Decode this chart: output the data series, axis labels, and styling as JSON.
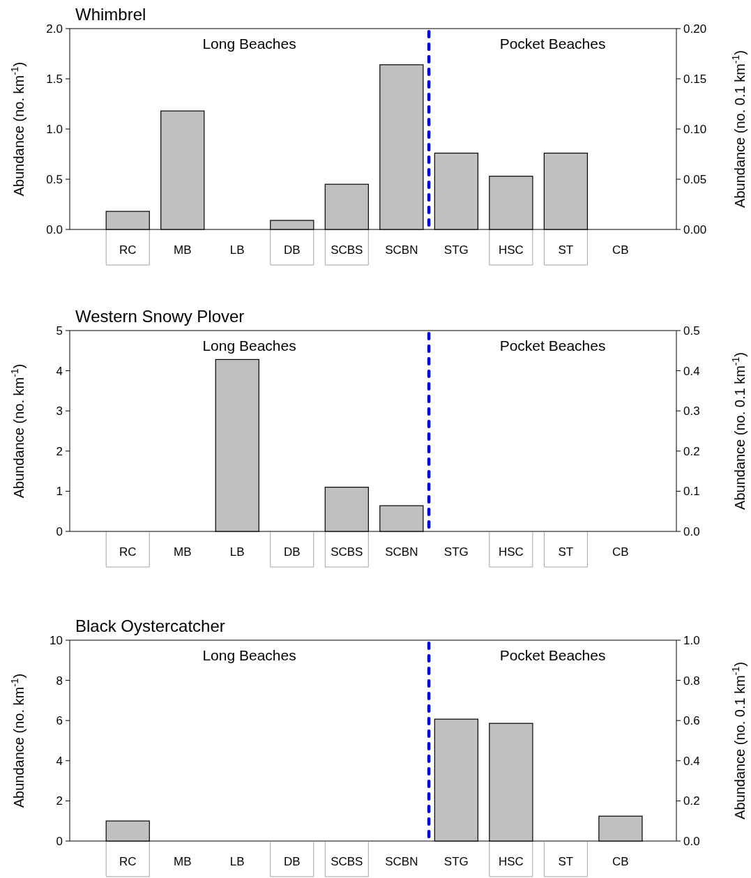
{
  "chart_data": [
    {
      "type": "bar",
      "title": "Whimbrel",
      "categories": [
        "RC",
        "MB",
        "LB",
        "DB",
        "SCBS",
        "SCBN",
        "STG",
        "HSC",
        "ST",
        "CB"
      ],
      "values": [
        0.18,
        1.18,
        0,
        0.09,
        0.45,
        1.64,
        0.76,
        0.53,
        0.76,
        0
      ],
      "color": "#c0c0c0",
      "ylim": [
        0,
        2
      ],
      "yticks": [
        {
          "value": 0,
          "label": "0.0"
        },
        0.5,
        {
          "value": 1,
          "label": "1.0"
        },
        1.5,
        {
          "value": 2,
          "label": "2.0"
        }
      ],
      "y2lim": [
        0,
        0.2
      ],
      "y2ticks": [
        {
          "value": 0,
          "label": "0.00"
        },
        0.05,
        {
          "value": 0.1,
          "label": "0.10"
        },
        0.15,
        {
          "value": 0.2,
          "label": "0.20"
        }
      ],
      "ylabel": "Abundance (no. km$^{-1}$)",
      "y2label": "Abundance (no. 0.1 km$^{-1}$)",
      "annotations": [
        "Long Beaches",
        "Pocket Beaches"
      ]
    },
    {
      "type": "bar",
      "title": "Western Snowy Plover",
      "categories": [
        "RC",
        "MB",
        "LB",
        "DB",
        "SCBS",
        "SCBN",
        "STG",
        "HSC",
        "ST",
        "CB"
      ],
      "values": [
        0,
        0,
        4.28,
        0,
        1.1,
        0.64,
        0,
        0,
        0,
        0
      ],
      "color": "#c0c0c0",
      "ylim": [
        0,
        5
      ],
      "yticks": [
        0,
        1,
        2,
        3,
        4,
        5
      ],
      "y2lim": [
        0,
        0.5
      ],
      "y2ticks": [
        {
          "value": 0,
          "label": "0.0"
        },
        0.1,
        0.2,
        0.3,
        0.4,
        0.5
      ],
      "ylabel": "Abundance (no. km$^{-1}$)",
      "y2label": "Abundance (no. 0.1 km$^{-1}$)",
      "annotations": [
        "Long Beaches",
        "Pocket Beaches"
      ]
    },
    {
      "type": "bar",
      "title": "Black Oystercatcher",
      "categories": [
        "RC",
        "MB",
        "LB",
        "DB",
        "SCBS",
        "SCBN",
        "STG",
        "HSC",
        "ST",
        "CB"
      ],
      "values": [
        1.0,
        0,
        0,
        0,
        0,
        0,
        6.07,
        5.86,
        0,
        1.24
      ],
      "color": "#c0c0c0",
      "ylim": [
        0,
        10
      ],
      "yticks": [
        0,
        2,
        4,
        6,
        8,
        10
      ],
      "y2lim": [
        0,
        1
      ],
      "y2ticks": [
        {
          "value": 0,
          "label": "0.0"
        },
        0.2,
        0.4,
        0.6,
        0.8,
        {
          "value": 1,
          "label": "1.0"
        }
      ],
      "ylabel": "Abundance (no. km$^{-1}$)",
      "y2label": "Abundance (no. 0.1 km$^{-1}$)",
      "annotations": [
        "Long Beaches",
        "Pocket Beaches"
      ]
    }
  ]
}
